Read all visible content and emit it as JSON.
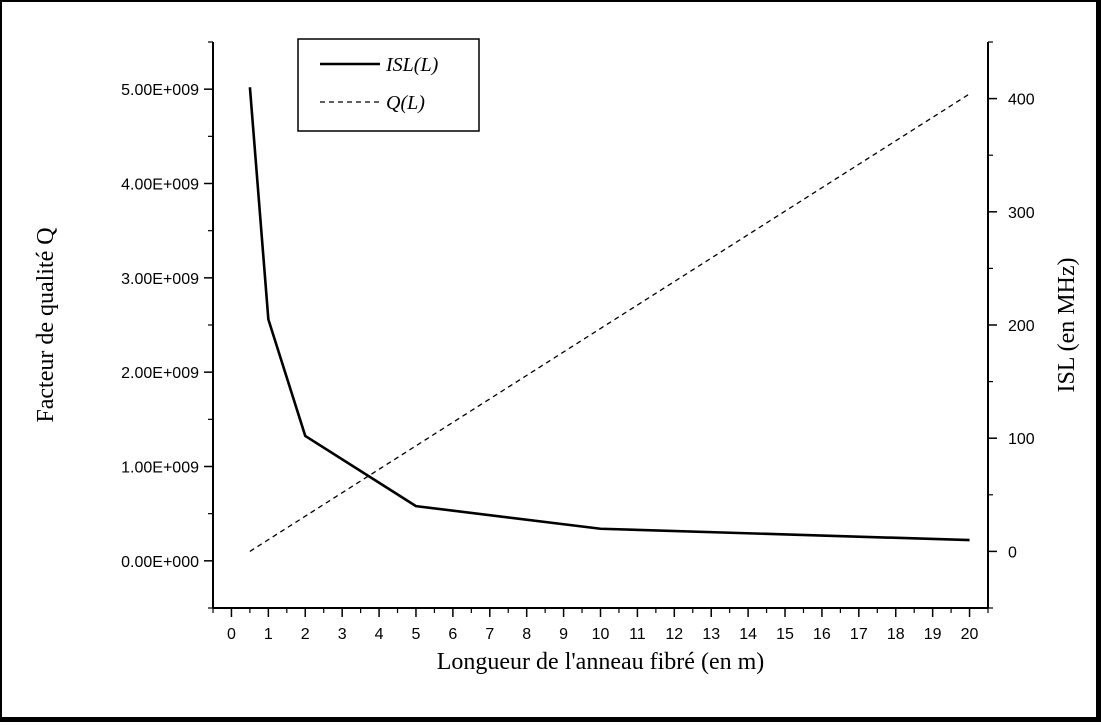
{
  "chart_data": {
    "type": "line",
    "title": "",
    "xlabel": "Longueur de l'anneau fibré (en m)",
    "ylabel_left": "Facteur de qualité Q",
    "ylabel_right": "ISL (en MHz)",
    "xlim": [
      -0.5,
      20.5
    ],
    "ylim_left": [
      -500000000,
      5500000000
    ],
    "ylim_right": [
      -50,
      450
    ],
    "x_ticks": [
      0,
      1,
      2,
      3,
      4,
      5,
      6,
      7,
      8,
      9,
      10,
      11,
      12,
      13,
      14,
      15,
      16,
      17,
      18,
      19,
      20
    ],
    "x_tick_labels": [
      "0",
      "1",
      "2",
      "3",
      "4",
      "5",
      "6",
      "7",
      "8",
      "9",
      "10",
      "11",
      "12",
      "13",
      "14",
      "15",
      "16",
      "17",
      "18",
      "19",
      "20"
    ],
    "y_left_ticks": [
      0,
      1000000000,
      2000000000,
      3000000000,
      4000000000,
      5000000000
    ],
    "y_left_tick_labels": [
      "0.00E+000",
      "1.00E+009",
      "2.00E+009",
      "3.00E+009",
      "4.00E+009",
      "5.00E+009"
    ],
    "y_right_ticks": [
      0,
      100,
      200,
      300,
      400
    ],
    "y_right_tick_labels": [
      "0",
      "100",
      "200",
      "300",
      "400"
    ],
    "legend_position": "top-left",
    "grid": false,
    "series": [
      {
        "name": "ISL(L)",
        "axis": "right",
        "style": "solid",
        "x": [
          0.5,
          1,
          2,
          5,
          10,
          20
        ],
        "values": [
          410,
          205,
          102,
          40,
          20,
          10
        ]
      },
      {
        "name": "Q(L)",
        "axis": "left",
        "style": "dashed",
        "x": [
          0.5,
          20
        ],
        "values": [
          100000000,
          4950000000
        ]
      }
    ]
  },
  "colors": {
    "line": "#000000",
    "background": "#ffffff"
  }
}
